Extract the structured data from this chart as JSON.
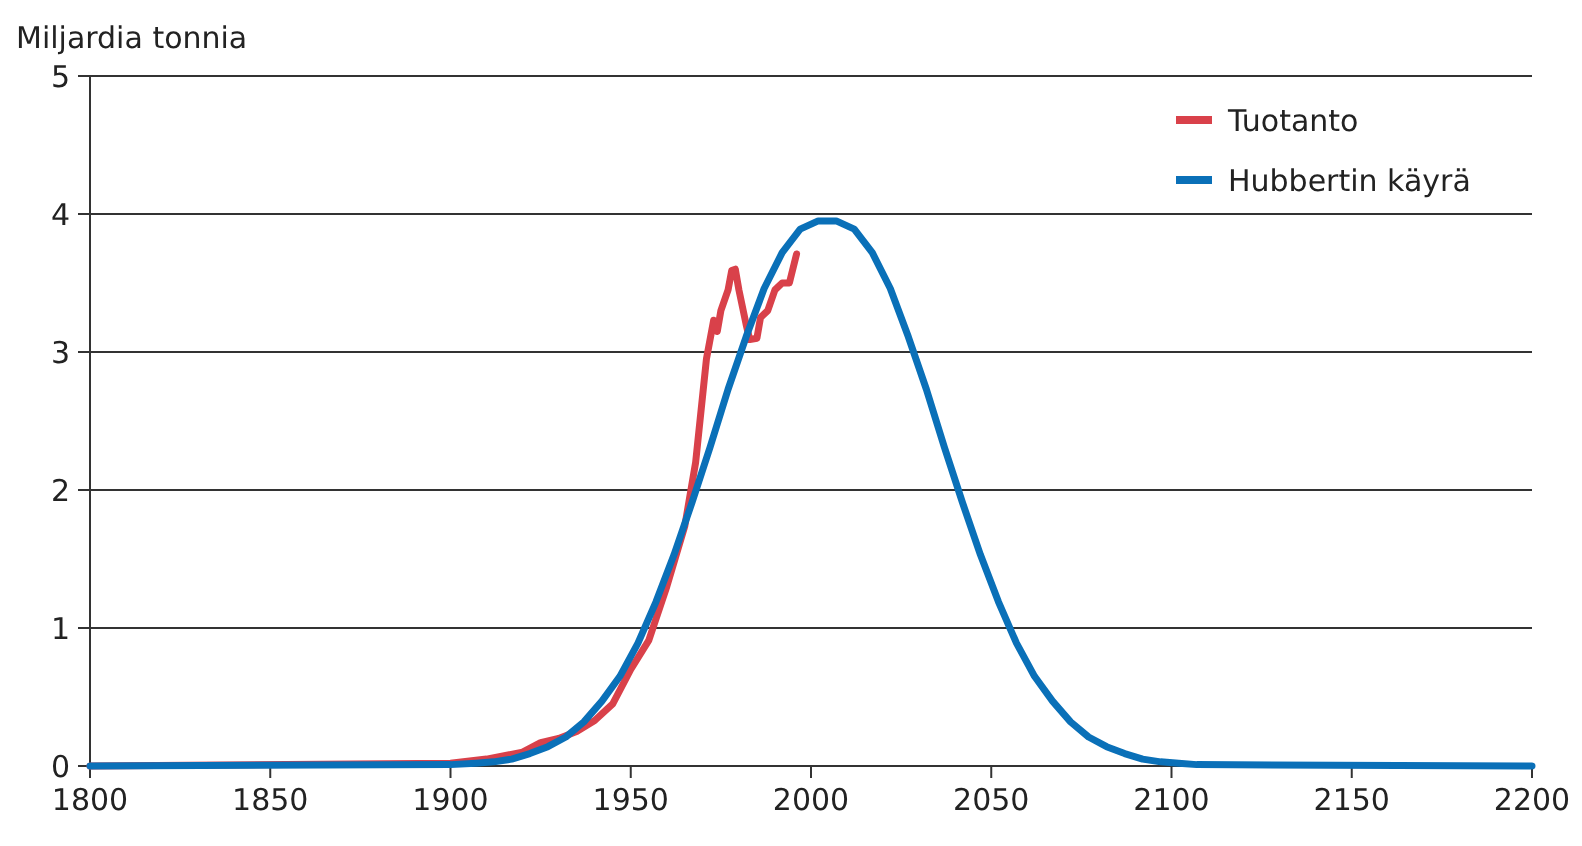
{
  "chart_data": {
    "type": "line",
    "ylabel": "Miljardia tonnia",
    "xlim": [
      1800,
      2200
    ],
    "ylim": [
      0,
      5
    ],
    "xticks": [
      1800,
      1850,
      1900,
      1950,
      2000,
      2050,
      2100,
      2150,
      2200
    ],
    "yticks": [
      0,
      1,
      2,
      3,
      4,
      5
    ],
    "grid": "y",
    "legend": "top right",
    "series": [
      {
        "name": "Tuotanto",
        "color": "#d9414a",
        "x": [
          1800,
          1900,
          1910,
          1920,
          1925,
          1930,
          1935,
          1940,
          1945,
          1950,
          1955,
          1960,
          1965,
          1968,
          1970,
          1971,
          1973,
          1974,
          1975,
          1977,
          1978,
          1979,
          1980,
          1982,
          1983,
          1985,
          1986,
          1988,
          1990,
          1992,
          1994,
          1996
        ],
        "values": [
          0,
          0.02,
          0.05,
          0.1,
          0.17,
          0.2,
          0.25,
          0.33,
          0.45,
          0.7,
          0.91,
          1.3,
          1.74,
          2.2,
          2.7,
          2.95,
          3.23,
          3.15,
          3.3,
          3.45,
          3.59,
          3.6,
          3.45,
          3.2,
          3.09,
          3.1,
          3.25,
          3.3,
          3.45,
          3.5,
          3.5,
          3.71
        ]
      },
      {
        "name": "Hubbertin käyrä",
        "color": "#0a70b8",
        "x": [
          1800,
          1900,
          1907,
          1912,
          1917,
          1922,
          1927,
          1932,
          1937,
          1942,
          1947,
          1952,
          1957,
          1962,
          1967,
          1972,
          1977,
          1982,
          1987,
          1992,
          1997,
          2002,
          2007,
          2012,
          2017,
          2022,
          2027,
          2032,
          2037,
          2042,
          2047,
          2052,
          2057,
          2062,
          2067,
          2072,
          2077,
          2082,
          2087,
          2092,
          2097,
          2102,
          2107,
          2200
        ],
        "values": [
          0,
          0.01,
          0.02,
          0.03,
          0.05,
          0.09,
          0.14,
          0.21,
          0.32,
          0.47,
          0.65,
          0.89,
          1.19,
          1.53,
          1.91,
          2.31,
          2.73,
          3.11,
          3.46,
          3.72,
          3.89,
          3.95,
          3.95,
          3.89,
          3.72,
          3.46,
          3.11,
          2.73,
          2.31,
          1.91,
          1.53,
          1.19,
          0.89,
          0.65,
          0.47,
          0.32,
          0.21,
          0.14,
          0.09,
          0.05,
          0.03,
          0.02,
          0.01,
          0
        ]
      }
    ]
  }
}
